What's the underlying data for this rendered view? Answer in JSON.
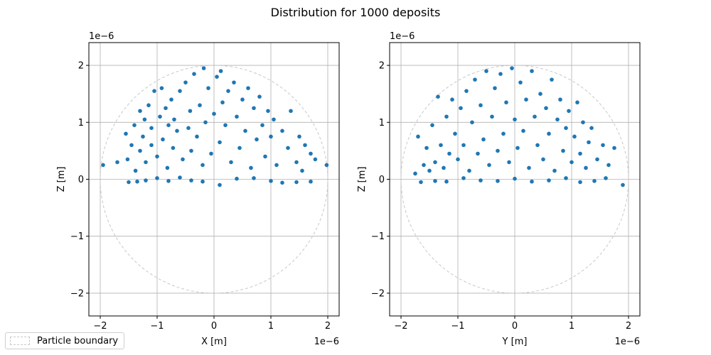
{
  "figure": {
    "title": "Distribution for 1000 deposits"
  },
  "legend": {
    "label": "Particle boundary",
    "placement": "lower-left"
  },
  "colors": {
    "points": "#1f77b4",
    "boundary": "#c8c8c8",
    "grid": "#b0b0b0",
    "axes": "#000000"
  },
  "chart_data": [
    {
      "type": "scatter",
      "title": "",
      "xlabel": "X [m]",
      "ylabel": "Z [m]",
      "x_offset_label": "1e−6",
      "y_offset_label": "1e−6",
      "xlim": [
        -2.2,
        2.2
      ],
      "ylim": [
        -2.4,
        2.4
      ],
      "xticks": [
        -2,
        -1,
        0,
        1,
        2
      ],
      "yticks": [
        -2,
        -1,
        0,
        1,
        2
      ],
      "xtick_labels": [
        "−2",
        "−1",
        "0",
        "1",
        "2"
      ],
      "ytick_labels": [
        "−2",
        "−1",
        "0",
        "1",
        "2"
      ],
      "grid": true,
      "boundary_circle": {
        "center": [
          0,
          0
        ],
        "radius": 2.0
      },
      "series": [
        {
          "x": [
            -1.95,
            -1.7,
            -1.55,
            -1.52,
            -1.45,
            -1.4,
            -1.38,
            -1.3,
            -1.3,
            -1.25,
            -1.22,
            -1.2,
            -1.15,
            -1.1,
            -1.1,
            -1.05,
            -1.0,
            -0.95,
            -0.92,
            -0.9,
            -0.85,
            -0.82,
            -0.8,
            -0.75,
            -0.72,
            -0.7,
            -0.65,
            -0.6,
            -0.55,
            -0.5,
            -0.45,
            -0.42,
            -0.4,
            -0.35,
            -0.3,
            -0.25,
            -0.2,
            -0.18,
            -0.15,
            -0.1,
            -0.05,
            0.0,
            0.05,
            0.1,
            0.12,
            0.15,
            0.2,
            0.25,
            0.3,
            0.35,
            0.4,
            0.45,
            0.5,
            0.55,
            0.6,
            0.65,
            0.7,
            0.75,
            0.8,
            0.85,
            0.9,
            0.95,
            1.0,
            1.05,
            1.1,
            1.2,
            1.3,
            1.35,
            1.45,
            1.5,
            1.55,
            1.6,
            1.7,
            1.78,
            1.98,
            -1.5,
            -1.35,
            -1.2,
            -1.0,
            -0.8,
            -0.6,
            -0.4,
            -0.2,
            0.1,
            0.4,
            0.7,
            1.0,
            1.2,
            1.45,
            1.7
          ],
          "y": [
            0.25,
            0.3,
            0.8,
            0.35,
            0.6,
            0.95,
            0.15,
            1.2,
            0.5,
            0.75,
            1.05,
            0.3,
            1.3,
            0.6,
            0.9,
            1.55,
            0.4,
            1.1,
            1.6,
            0.7,
            1.25,
            0.2,
            0.95,
            1.4,
            0.55,
            1.05,
            0.85,
            1.55,
            0.35,
            1.7,
            0.9,
            1.2,
            0.5,
            1.85,
            0.75,
            1.3,
            0.25,
            1.95,
            1.0,
            1.6,
            0.45,
            1.15,
            1.8,
            0.65,
            1.9,
            1.35,
            0.95,
            1.55,
            0.3,
            1.7,
            1.1,
            0.55,
            1.4,
            0.85,
            1.6,
            0.2,
            1.25,
            0.7,
            1.45,
            0.95,
            0.4,
            1.2,
            0.75,
            1.05,
            0.25,
            0.85,
            0.55,
            1.2,
            0.3,
            0.75,
            0.15,
            0.6,
            0.45,
            0.35,
            0.25,
            -0.05,
            -0.04,
            -0.02,
            0.02,
            -0.03,
            0.03,
            -0.02,
            -0.04,
            -0.1,
            0.01,
            0.02,
            -0.03,
            -0.06,
            -0.05,
            -0.04
          ]
        }
      ]
    },
    {
      "type": "scatter",
      "title": "",
      "xlabel": "Y [m]",
      "ylabel": "Z [m]",
      "x_offset_label": "1e−6",
      "y_offset_label": "1e−6",
      "xlim": [
        -2.2,
        2.2
      ],
      "ylim": [
        -2.4,
        2.4
      ],
      "xticks": [
        -2,
        -1,
        0,
        1,
        2
      ],
      "yticks": [
        -2,
        -1,
        0,
        1,
        2
      ],
      "xtick_labels": [
        "−2",
        "−1",
        "0",
        "1",
        "2"
      ],
      "ytick_labels": [
        "−2",
        "−1",
        "0",
        "1",
        "2"
      ],
      "grid": true,
      "boundary_circle": {
        "center": [
          0,
          0
        ],
        "radius": 2.0
      },
      "series": [
        {
          "x": [
            -1.75,
            -1.7,
            -1.6,
            -1.55,
            -1.5,
            -1.45,
            -1.4,
            -1.35,
            -1.3,
            -1.25,
            -1.2,
            -1.15,
            -1.1,
            -1.05,
            -1.0,
            -0.95,
            -0.9,
            -0.85,
            -0.8,
            -0.75,
            -0.7,
            -0.65,
            -0.6,
            -0.55,
            -0.5,
            -0.45,
            -0.4,
            -0.35,
            -0.3,
            -0.25,
            -0.2,
            -0.15,
            -0.1,
            -0.05,
            0.0,
            0.05,
            0.1,
            0.15,
            0.2,
            0.25,
            0.3,
            0.35,
            0.4,
            0.45,
            0.5,
            0.55,
            0.6,
            0.65,
            0.7,
            0.75,
            0.8,
            0.85,
            0.9,
            0.95,
            1.0,
            1.05,
            1.1,
            1.15,
            1.2,
            1.25,
            1.3,
            1.35,
            1.45,
            1.55,
            1.65,
            1.75,
            1.9,
            -1.65,
            -1.4,
            -1.2,
            -0.9,
            -0.6,
            -0.3,
            0.0,
            0.3,
            0.6,
            0.9,
            1.15,
            1.4,
            1.6
          ],
          "y": [
            0.1,
            0.75,
            0.25,
            0.55,
            0.15,
            0.95,
            0.3,
            1.45,
            0.6,
            0.2,
            1.1,
            0.45,
            1.4,
            0.8,
            0.35,
            1.25,
            0.6,
            1.55,
            0.15,
            1.0,
            1.75,
            0.45,
            1.3,
            0.7,
            1.9,
            0.25,
            1.1,
            1.6,
            0.5,
            1.85,
            0.8,
            1.35,
            0.3,
            1.95,
            1.05,
            0.55,
            1.7,
            0.85,
            1.4,
            0.2,
            1.9,
            1.1,
            0.6,
            1.5,
            0.35,
            1.25,
            0.8,
            1.75,
            0.15,
            1.05,
            1.4,
            0.5,
            0.9,
            1.2,
            0.3,
            0.75,
            1.35,
            0.45,
            1.0,
            0.2,
            0.65,
            0.9,
            0.35,
            0.6,
            0.25,
            0.55,
            -0.1,
            -0.05,
            -0.03,
            -0.04,
            0.02,
            -0.02,
            -0.03,
            0.01,
            -0.04,
            -0.02,
            0.02,
            -0.05,
            -0.03,
            0.02
          ]
        }
      ]
    }
  ]
}
